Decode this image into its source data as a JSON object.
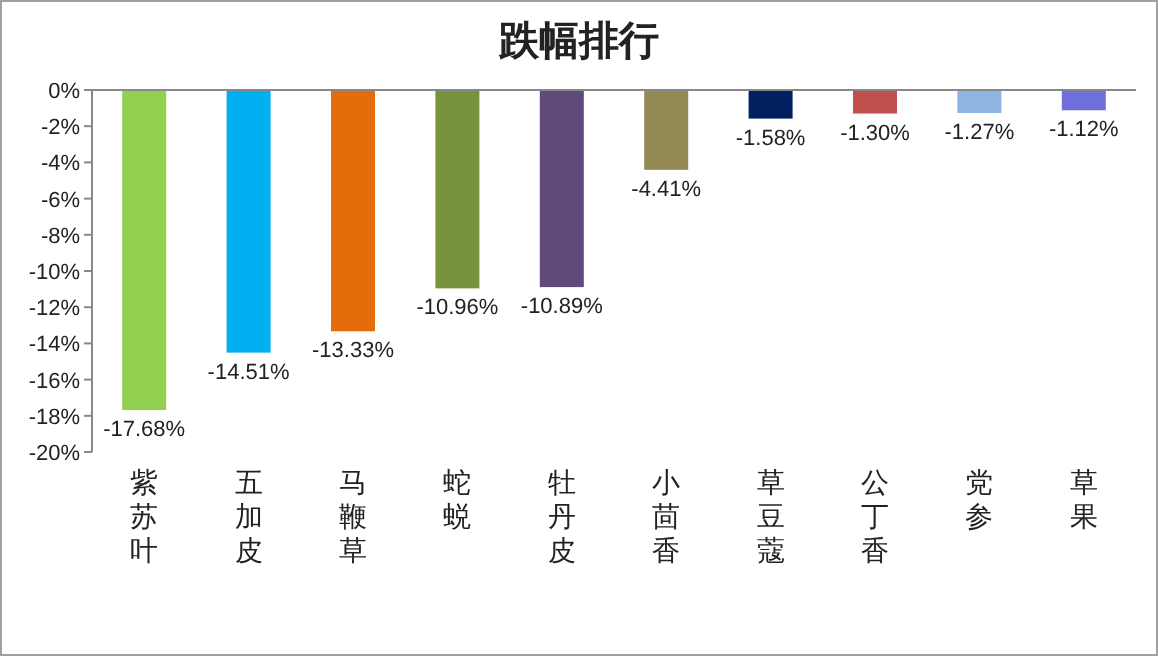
{
  "chart_data": {
    "type": "bar",
    "title": "跌幅排行",
    "categories": [
      "紫苏叶",
      "五加皮",
      "马鞭草",
      "蛇蜕",
      "牡丹皮",
      "小茴香",
      "草豆蔻",
      "公丁香",
      "党参",
      "草果"
    ],
    "values": [
      -17.68,
      -14.51,
      -13.33,
      -10.96,
      -10.89,
      -4.41,
      -1.58,
      -1.3,
      -1.27,
      -1.12
    ],
    "value_labels": [
      "-17.68%",
      "-14.51%",
      "-13.33%",
      "-10.96%",
      "-10.89%",
      "-4.41%",
      "-1.58%",
      "-1.30%",
      "-1.27%",
      "-1.12%"
    ],
    "colors": [
      "#92d050",
      "#00b0f0",
      "#e46c0a",
      "#77933c",
      "#604a7b",
      "#948a54",
      "#002060",
      "#c0504d",
      "#8db4e2",
      "#7070dd"
    ],
    "ylim": [
      -20,
      0
    ],
    "yticks": [
      {
        "value": 0,
        "label": "0%"
      },
      {
        "value": -2,
        "label": "-2%"
      },
      {
        "value": -4,
        "label": "-4%"
      },
      {
        "value": -6,
        "label": "-6%"
      },
      {
        "value": -8,
        "label": "-8%"
      },
      {
        "value": -10,
        "label": "-10%"
      },
      {
        "value": -12,
        "label": "-12%"
      },
      {
        "value": -14,
        "label": "-14%"
      },
      {
        "value": -16,
        "label": "-16%"
      },
      {
        "value": -18,
        "label": "-18%"
      },
      {
        "value": -20,
        "label": "-20%"
      }
    ],
    "grid": false
  }
}
